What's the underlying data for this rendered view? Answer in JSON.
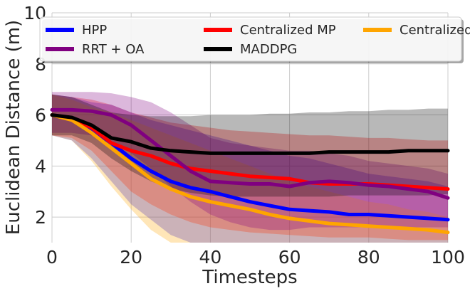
{
  "chart_data": {
    "type": "line",
    "title": "",
    "xlabel": "Timesteps",
    "ylabel": "Euclidean Distance (m)",
    "xlim": [
      0,
      100
    ],
    "ylim": [
      1,
      10
    ],
    "xticks": [
      0,
      20,
      40,
      60,
      80,
      100
    ],
    "yticks": [
      2,
      4,
      6,
      8,
      10
    ],
    "grid": true,
    "legend_position": "top",
    "x": [
      0,
      5,
      10,
      15,
      20,
      25,
      30,
      35,
      40,
      45,
      50,
      55,
      60,
      65,
      70,
      75,
      80,
      85,
      90,
      95,
      100
    ],
    "series": [
      {
        "name": "HPP",
        "color": "#0000ff",
        "values": [
          6.0,
          5.85,
          5.4,
          4.9,
          4.3,
          3.8,
          3.4,
          3.15,
          3.0,
          2.8,
          2.6,
          2.45,
          2.3,
          2.25,
          2.2,
          2.1,
          2.1,
          2.05,
          2.0,
          1.95,
          1.9
        ],
        "lower": [
          5.2,
          5.0,
          4.3,
          3.4,
          2.5,
          1.9,
          1.3,
          1.0,
          1.0,
          1.0,
          1.0,
          1.0,
          1.0,
          1.0,
          1.0,
          1.0,
          1.0,
          1.0,
          1.0,
          1.0,
          1.0
        ],
        "upper": [
          6.8,
          6.7,
          6.5,
          6.4,
          6.1,
          5.8,
          5.6,
          5.4,
          5.2,
          5.0,
          4.8,
          4.6,
          4.4,
          4.3,
          4.1,
          3.9,
          3.7,
          3.6,
          3.5,
          3.4,
          3.2
        ]
      },
      {
        "name": "Centralized MP",
        "color": "#ff0000",
        "values": [
          6.0,
          5.85,
          5.5,
          4.9,
          4.6,
          4.4,
          4.1,
          3.9,
          3.8,
          3.7,
          3.6,
          3.55,
          3.5,
          3.35,
          3.3,
          3.3,
          3.3,
          3.25,
          3.2,
          3.15,
          3.1
        ],
        "lower": [
          5.2,
          5.1,
          4.6,
          3.8,
          3.0,
          2.5,
          2.1,
          1.8,
          1.6,
          1.5,
          1.4,
          1.35,
          1.3,
          1.25,
          1.2,
          1.2,
          1.2,
          1.15,
          1.1,
          1.1,
          1.1
        ],
        "upper": [
          6.8,
          6.7,
          6.6,
          6.4,
          6.1,
          5.9,
          5.7,
          5.6,
          5.5,
          5.4,
          5.35,
          5.3,
          5.25,
          5.2,
          5.2,
          5.15,
          5.1,
          5.1,
          5.05,
          5.0,
          5.0
        ]
      },
      {
        "name": "Centralized OA",
        "color": "#ffa500",
        "values": [
          6.0,
          5.8,
          5.3,
          4.7,
          4.1,
          3.5,
          3.1,
          2.8,
          2.6,
          2.45,
          2.3,
          2.1,
          1.95,
          1.85,
          1.75,
          1.7,
          1.65,
          1.6,
          1.55,
          1.5,
          1.4
        ],
        "lower": [
          5.2,
          5.0,
          4.2,
          3.2,
          2.3,
          1.5,
          1.0,
          1.0,
          1.0,
          1.0,
          1.0,
          1.0,
          1.0,
          1.0,
          1.0,
          1.0,
          1.0,
          1.0,
          1.0,
          1.0,
          1.0
        ],
        "upper": [
          6.8,
          6.6,
          6.3,
          6.1,
          5.8,
          5.5,
          5.2,
          4.9,
          4.6,
          4.3,
          4.0,
          3.7,
          3.4,
          3.2,
          3.0,
          2.8,
          2.6,
          2.5,
          2.3,
          2.2,
          2.0
        ]
      },
      {
        "name": "RRT + OA",
        "color": "#800080",
        "values": [
          6.2,
          6.2,
          6.15,
          6.0,
          5.6,
          5.0,
          4.4,
          3.8,
          3.4,
          3.35,
          3.3,
          3.3,
          3.2,
          3.35,
          3.4,
          3.35,
          3.25,
          3.2,
          3.1,
          3.0,
          2.75
        ],
        "lower": [
          5.3,
          5.3,
          5.2,
          5.0,
          4.5,
          3.9,
          3.2,
          2.6,
          2.1,
          1.8,
          1.6,
          1.5,
          1.5,
          1.6,
          1.6,
          1.6,
          1.6,
          1.6,
          1.6,
          1.6,
          1.6
        ],
        "upper": [
          6.9,
          6.9,
          6.9,
          6.85,
          6.7,
          6.5,
          6.1,
          5.6,
          5.1,
          4.9,
          4.8,
          4.7,
          4.6,
          4.6,
          4.5,
          4.4,
          4.2,
          4.1,
          4.0,
          3.9,
          3.7
        ]
      },
      {
        "name": "MADDPG",
        "color": "#000000",
        "values": [
          6.0,
          5.9,
          5.6,
          5.1,
          4.95,
          4.7,
          4.6,
          4.55,
          4.5,
          4.5,
          4.5,
          4.5,
          4.5,
          4.5,
          4.55,
          4.55,
          4.55,
          4.55,
          4.6,
          4.6,
          4.6
        ],
        "lower": [
          5.2,
          5.2,
          4.9,
          4.3,
          3.8,
          3.4,
          3.1,
          2.95,
          2.85,
          2.8,
          2.8,
          2.8,
          2.8,
          2.8,
          2.8,
          2.85,
          2.85,
          2.85,
          2.85,
          2.85,
          2.9
        ],
        "upper": [
          6.8,
          6.7,
          6.4,
          6.1,
          6.0,
          5.95,
          5.95,
          5.95,
          6.0,
          6.0,
          6.0,
          6.05,
          6.05,
          6.1,
          6.1,
          6.15,
          6.15,
          6.2,
          6.2,
          6.25,
          6.25
        ]
      }
    ]
  }
}
